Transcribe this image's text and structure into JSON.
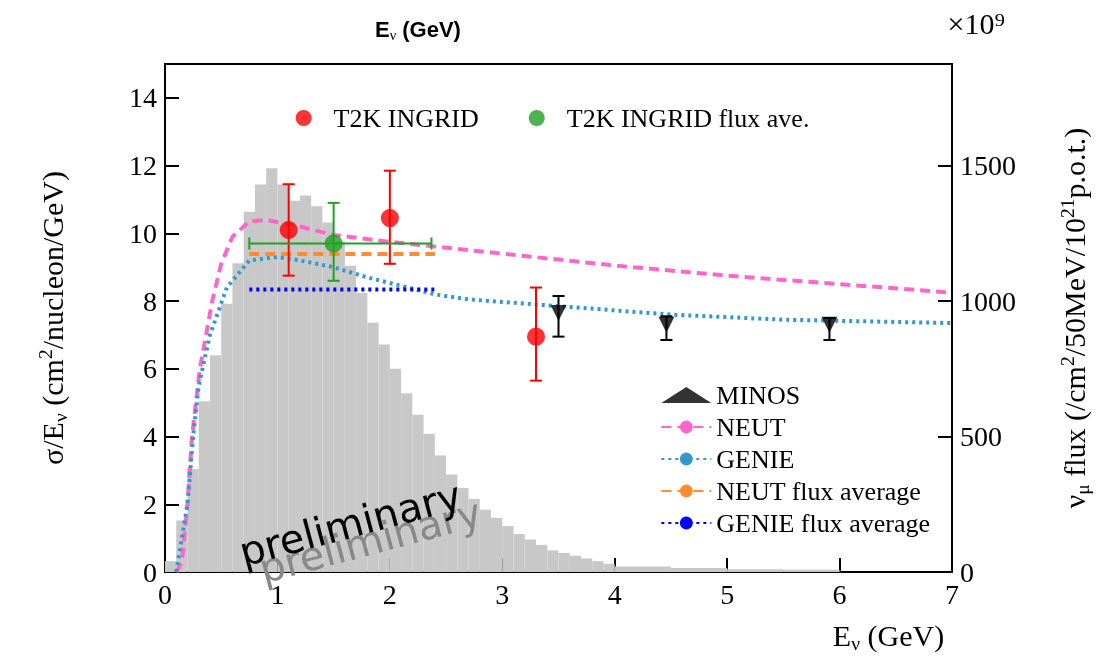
{
  "chart_data": {
    "type": "scatter",
    "xlabel": "E$_{ν}$ (GeV)",
    "ylabel": "σ/E$_{ν}$ (cm$^{2}$/nucleon/GeV)",
    "y2label": "ν$_{μ}$ flux (/cm$^{2}$/50MeV/10$^{21}$p.o.t.)",
    "xlim": [
      0,
      7
    ],
    "xticks": [
      0,
      1,
      2,
      3,
      4,
      5,
      6,
      7
    ],
    "ylim": [
      0,
      15
    ],
    "yticks": [
      0,
      2,
      4,
      6,
      8,
      10,
      12,
      14
    ],
    "y2lim": [
      0,
      1875
    ],
    "y2ticks": [
      0,
      500,
      1000,
      1500
    ],
    "grid": false,
    "legend": "bottom right",
    "annotations": [
      "×10⁹",
      "E$_{ν}$ (GeV)",
      "preliminary",
      "preliminary"
    ],
    "series": [
      {
        "type": "histogram",
        "axis": "y2",
        "color": "#c8c8c8",
        "bins": [
          0,
          0.1,
          0.2,
          0.3,
          0.4,
          0.5,
          0.6,
          0.7,
          0.8,
          0.9,
          1.0,
          1.1,
          1.2,
          1.3,
          1.4,
          1.5,
          1.6,
          1.7,
          1.8,
          1.9,
          2.0,
          2.1,
          2.2,
          2.3,
          2.4,
          2.5,
          2.6,
          2.7,
          2.8,
          2.9,
          3.0,
          3.1,
          3.2,
          3.3,
          3.4,
          3.5,
          3.6,
          3.7,
          3.8,
          3.9,
          4.0,
          4.5,
          5.0,
          5.5,
          6.0
        ],
        "values": [
          40,
          190,
          380,
          630,
          800,
          990,
          1140,
          1330,
          1430,
          1490,
          1430,
          1370,
          1390,
          1350,
          1290,
          1220,
          1130,
          1030,
          920,
          840,
          750,
          660,
          580,
          510,
          430,
          360,
          310,
          270,
          230,
          200,
          170,
          140,
          120,
          100,
          80,
          70,
          60,
          50,
          40,
          30,
          20,
          15,
          10,
          8
        ]
      },
      {
        "name": "T2K INGRID",
        "color": "#ff0000",
        "marker": "circle",
        "x": [
          1.1,
          2.0,
          3.3
        ],
        "values": [
          10.1,
          10.45,
          6.95
        ],
        "errors": [
          [
            8.75,
            11.45
          ],
          [
            9.1,
            11.85
          ],
          [
            5.65,
            8.4
          ]
        ]
      },
      {
        "name": "T2K INGRID flux ave.",
        "color": "#22a022",
        "marker": "circle",
        "x": [
          1.5
        ],
        "values": [
          9.7
        ],
        "errors": [
          [
            8.6,
            10.9
          ]
        ],
        "xerrors": [
          [
            0.75,
            2.37
          ]
        ]
      },
      {
        "name": "MINOS",
        "color": "#000000",
        "marker": "triangle",
        "x": [
          3.5,
          4.46,
          5.91
        ],
        "values": [
          7.65,
          7.3,
          7.3
        ],
        "errors": [
          [
            6.95,
            8.15
          ],
          [
            6.85,
            7.55
          ],
          [
            6.85,
            7.5
          ]
        ]
      },
      {
        "type": "line",
        "name": "NEUT",
        "color": "#ff66cc",
        "line_style": "dashed",
        "x": [
          0.1,
          0.15,
          0.2,
          0.24,
          0.31,
          0.42,
          0.5,
          0.6,
          0.75,
          0.9,
          1.2,
          1.5,
          2.0,
          3.0,
          4.0,
          5.0,
          6.0,
          7.0
        ],
        "values": [
          0,
          0.3,
          2,
          4,
          6,
          8,
          9.1,
          9.9,
          10.35,
          10.4,
          10.2,
          9.95,
          9.75,
          9.4,
          9.05,
          8.75,
          8.5,
          8.25
        ]
      },
      {
        "type": "line",
        "name": "GENIE",
        "color": "#3399cc",
        "line_style": "dotted",
        "x": [
          0.1,
          0.2,
          0.25,
          0.3,
          0.4,
          0.55,
          0.75,
          1.0,
          1.2,
          1.5,
          1.8,
          2.4,
          2.7,
          3.5,
          4.5,
          5.5,
          7.0
        ],
        "values": [
          0,
          2,
          4,
          5.5,
          7,
          8.4,
          9.2,
          9.3,
          9.2,
          9.0,
          8.7,
          8.2,
          8.05,
          7.85,
          7.6,
          7.45,
          7.35
        ]
      },
      {
        "type": "line",
        "name": "NEUT flux average",
        "color": "#ff8c33",
        "line_style": "dashed",
        "x": [
          0.75,
          2.4
        ],
        "values": [
          9.39,
          9.39
        ]
      },
      {
        "type": "line",
        "name": "GENIE flux average",
        "color": "#0000ff",
        "line_style": "dotted",
        "x": [
          0.75,
          2.4
        ],
        "values": [
          8.34,
          8.34
        ]
      }
    ]
  }
}
